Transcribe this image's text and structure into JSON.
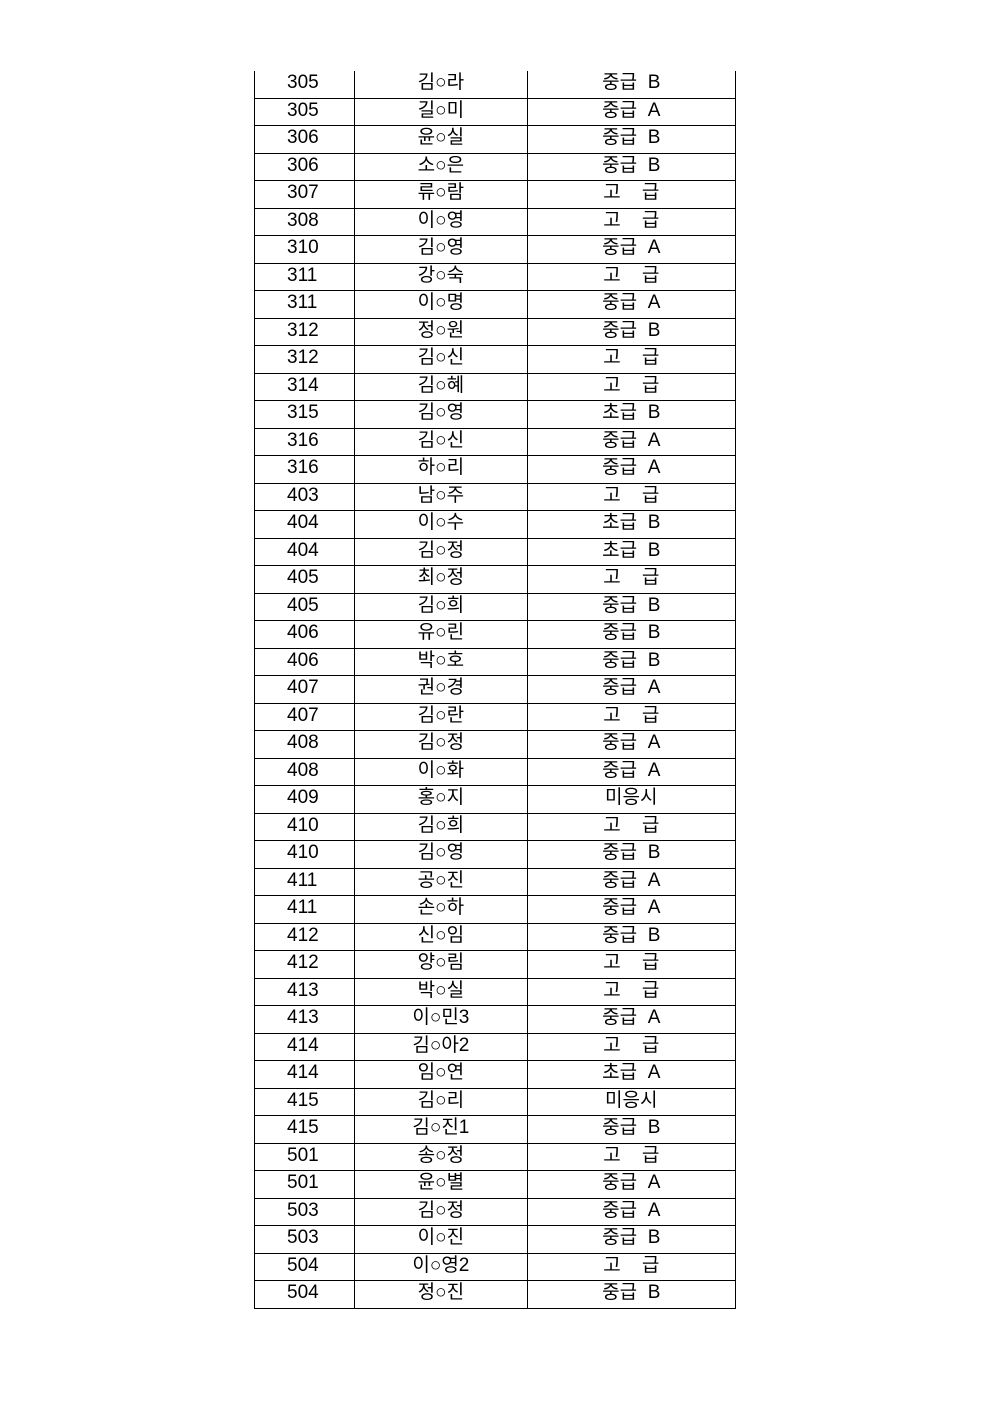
{
  "rows": [
    {
      "room": "305",
      "name": "김○라",
      "grade": "중급  B"
    },
    {
      "room": "305",
      "name": "길○미",
      "grade": "중급  A"
    },
    {
      "room": "306",
      "name": "윤○실",
      "grade": "중급  B"
    },
    {
      "room": "306",
      "name": "소○은",
      "grade": "중급  B"
    },
    {
      "room": "307",
      "name": "류○람",
      "grade": "고    급"
    },
    {
      "room": "308",
      "name": "이○영",
      "grade": "고    급"
    },
    {
      "room": "310",
      "name": "김○영",
      "grade": "중급  A"
    },
    {
      "room": "311",
      "name": "강○숙",
      "grade": "고    급"
    },
    {
      "room": "311",
      "name": "이○명",
      "grade": "중급  A"
    },
    {
      "room": "312",
      "name": "정○원",
      "grade": "중급  B"
    },
    {
      "room": "312",
      "name": "김○신",
      "grade": "고    급"
    },
    {
      "room": "314",
      "name": "김○혜",
      "grade": "고    급"
    },
    {
      "room": "315",
      "name": "김○영",
      "grade": "초급  B"
    },
    {
      "room": "316",
      "name": "김○신",
      "grade": "중급  A"
    },
    {
      "room": "316",
      "name": "하○리",
      "grade": "중급  A"
    },
    {
      "room": "403",
      "name": "남○주",
      "grade": "고    급"
    },
    {
      "room": "404",
      "name": "이○수",
      "grade": "초급  B"
    },
    {
      "room": "404",
      "name": "김○정",
      "grade": "초급  B"
    },
    {
      "room": "405",
      "name": "최○정",
      "grade": "고    급"
    },
    {
      "room": "405",
      "name": "김○희",
      "grade": "중급  B"
    },
    {
      "room": "406",
      "name": "유○린",
      "grade": "중급  B"
    },
    {
      "room": "406",
      "name": "박○호",
      "grade": "중급  B"
    },
    {
      "room": "407",
      "name": "권○경",
      "grade": "중급  A"
    },
    {
      "room": "407",
      "name": "김○란",
      "grade": "고    급"
    },
    {
      "room": "408",
      "name": "김○정",
      "grade": "중급  A"
    },
    {
      "room": "408",
      "name": "이○화",
      "grade": "중급  A"
    },
    {
      "room": "409",
      "name": "홍○지",
      "grade": "미응시"
    },
    {
      "room": "410",
      "name": "김○희",
      "grade": "고    급"
    },
    {
      "room": "410",
      "name": "김○영",
      "grade": "중급  B"
    },
    {
      "room": "411",
      "name": "공○진",
      "grade": "중급  A"
    },
    {
      "room": "411",
      "name": "손○하",
      "grade": "중급  A"
    },
    {
      "room": "412",
      "name": "신○임",
      "grade": "중급  B"
    },
    {
      "room": "412",
      "name": "양○림",
      "grade": "고    급"
    },
    {
      "room": "413",
      "name": "박○실",
      "grade": "고    급"
    },
    {
      "room": "413",
      "name": "이○민3",
      "grade": "중급  A"
    },
    {
      "room": "414",
      "name": "김○아2",
      "grade": "고    급"
    },
    {
      "room": "414",
      "name": "임○연",
      "grade": "초급  A"
    },
    {
      "room": "415",
      "name": "김○리",
      "grade": "미응시"
    },
    {
      "room": "415",
      "name": "김○진1",
      "grade": "중급  B"
    },
    {
      "room": "501",
      "name": "송○정",
      "grade": "고    급"
    },
    {
      "room": "501",
      "name": "윤○별",
      "grade": "중급  A"
    },
    {
      "room": "503",
      "name": "김○정",
      "grade": "중급  A"
    },
    {
      "room": "503",
      "name": "이○진",
      "grade": "중급  B"
    },
    {
      "room": "504",
      "name": "이○영2",
      "grade": "고    급"
    },
    {
      "room": "504",
      "name": "정○진",
      "grade": "중급  B"
    }
  ]
}
